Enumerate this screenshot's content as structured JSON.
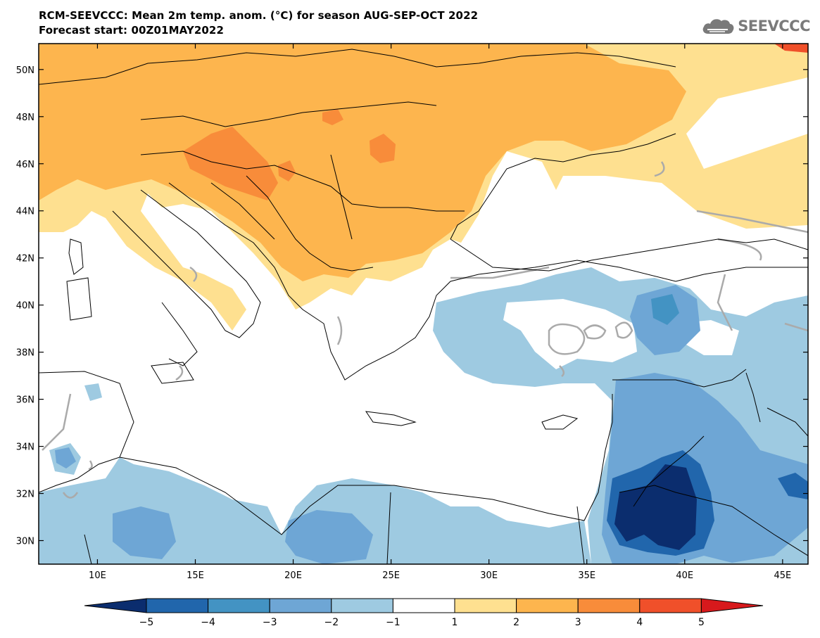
{
  "header": {
    "title_line1": "RCM-SEEVCCC: Mean 2m temp. anom. (°C) for season AUG-SEP-OCT 2022",
    "title_line2": "Forecast start: 00Z01MAY2022"
  },
  "logo": {
    "text": "SEEVCCC",
    "icon": "cloud-icon",
    "color": "#7a7a7a"
  },
  "map": {
    "lat_ticks": [
      "50N",
      "48N",
      "46N",
      "44N",
      "42N",
      "40N",
      "38N",
      "36N",
      "34N",
      "32N",
      "30N"
    ],
    "lon_ticks": [
      "10E",
      "15E",
      "20E",
      "25E",
      "30E",
      "35E",
      "40E",
      "45E"
    ],
    "lat_values": [
      50,
      48,
      46,
      44,
      42,
      40,
      38,
      36,
      34,
      32,
      30
    ],
    "lon_values": [
      10,
      15,
      20,
      25,
      30,
      35,
      40,
      45
    ],
    "lat_range": [
      29,
      51.1
    ],
    "lon_range": [
      7,
      46.3
    ]
  },
  "colorbar": {
    "labels": [
      "−5",
      "−4",
      "−3",
      "−2",
      "−1",
      "1",
      "2",
      "3",
      "4",
      "5"
    ],
    "colors": [
      "#0b2d6e",
      "#2166ac",
      "#4393c3",
      "#6ea6d5",
      "#9ecae1",
      "#ffffff",
      "#fee090",
      "#fdb54e",
      "#f88c3a",
      "#f0502a",
      "#d7191c"
    ]
  }
}
